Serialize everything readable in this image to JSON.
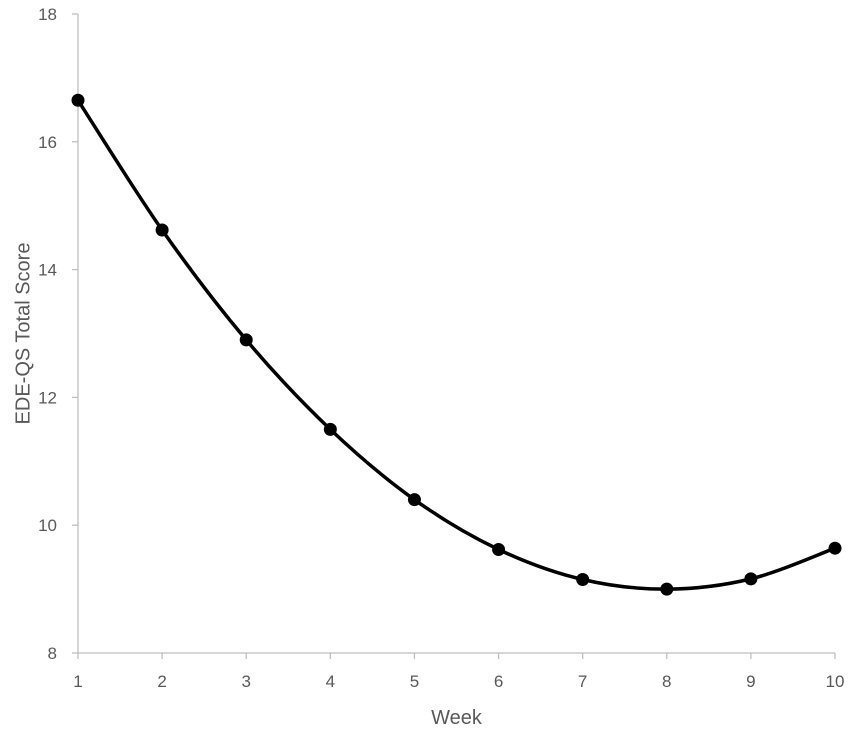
{
  "chart_data": {
    "type": "line",
    "xlabel": "Week",
    "ylabel": "EDE-QS Total Score",
    "x": [
      1,
      2,
      3,
      4,
      5,
      6,
      7,
      8,
      9,
      10
    ],
    "x_ticks": [
      "1",
      "2",
      "3",
      "4",
      "5",
      "6",
      "7",
      "8",
      "9",
      "10"
    ],
    "y_ticks": [
      "8",
      "10",
      "12",
      "14",
      "16",
      "18"
    ],
    "xlim": [
      1,
      10
    ],
    "ylim": [
      8,
      18
    ],
    "grid": false,
    "series": [
      {
        "values": [
          16.65,
          14.62,
          12.9,
          11.5,
          10.4,
          9.62,
          9.15,
          9.0,
          9.16,
          9.64
        ]
      }
    ],
    "colors": {
      "series": "#000000",
      "axis": "#bfbfbf",
      "text": "#595959"
    }
  }
}
